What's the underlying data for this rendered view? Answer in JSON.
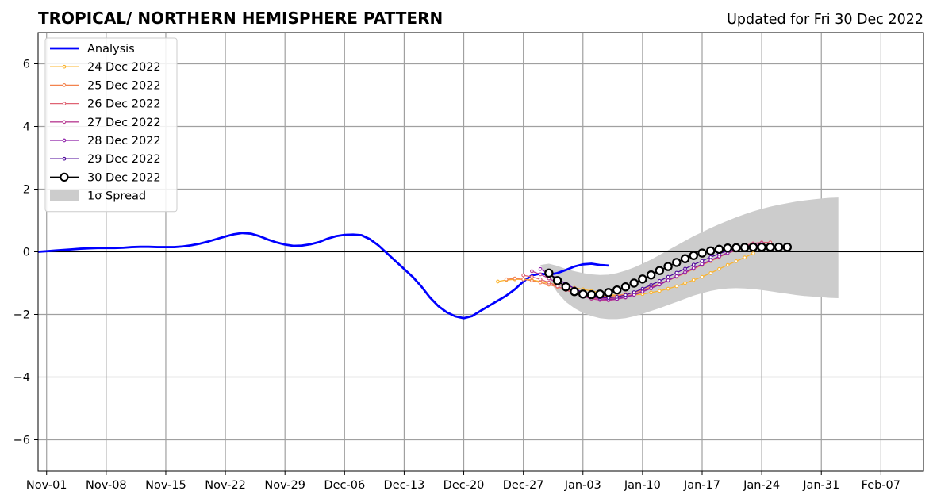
{
  "chart_data": {
    "type": "line",
    "title": "TROPICAL/ NORTHERN HEMISPHERE PATTERN",
    "subtitle": "Updated for Fri 30 Dec 2022",
    "xlabel": "",
    "ylabel": "",
    "x_start": "2022-10-31",
    "xlim": [
      "2022-10-31",
      "2023-02-12"
    ],
    "ylim": [
      -7,
      7
    ],
    "grid": true,
    "legend_position": "upper left",
    "x_ticks": [
      {
        "date": "2022-11-01",
        "label": "Nov-01"
      },
      {
        "date": "2022-11-08",
        "label": "Nov-08"
      },
      {
        "date": "2022-11-15",
        "label": "Nov-15"
      },
      {
        "date": "2022-11-22",
        "label": "Nov-22"
      },
      {
        "date": "2022-11-29",
        "label": "Nov-29"
      },
      {
        "date": "2022-12-06",
        "label": "Dec-06"
      },
      {
        "date": "2022-12-13",
        "label": "Dec-13"
      },
      {
        "date": "2022-12-20",
        "label": "Dec-20"
      },
      {
        "date": "2022-12-27",
        "label": "Dec-27"
      },
      {
        "date": "2023-01-03",
        "label": "Jan-03"
      },
      {
        "date": "2023-01-10",
        "label": "Jan-10"
      },
      {
        "date": "2023-01-17",
        "label": "Jan-17"
      },
      {
        "date": "2023-01-24",
        "label": "Jan-24"
      },
      {
        "date": "2023-01-31",
        "label": "Jan-31"
      },
      {
        "date": "2023-02-07",
        "label": "Feb-07"
      }
    ],
    "y_ticks": [
      {
        "value": 6,
        "label": "6"
      },
      {
        "value": 4,
        "label": "4"
      },
      {
        "value": 2,
        "label": "2"
      },
      {
        "value": 0,
        "label": "0"
      },
      {
        "value": -2,
        "label": "−2"
      },
      {
        "value": -4,
        "label": "−4"
      },
      {
        "value": -6,
        "label": "−6"
      }
    ],
    "analysis": {
      "name": "Analysis",
      "color": "#0000ff",
      "start": "2022-10-31",
      "values": [
        0.0,
        0.02,
        0.04,
        0.06,
        0.08,
        0.1,
        0.11,
        0.12,
        0.12,
        0.12,
        0.13,
        0.15,
        0.16,
        0.16,
        0.15,
        0.15,
        0.15,
        0.17,
        0.21,
        0.26,
        0.33,
        0.41,
        0.49,
        0.56,
        0.6,
        0.58,
        0.5,
        0.39,
        0.3,
        0.23,
        0.19,
        0.2,
        0.24,
        0.31,
        0.42,
        0.5,
        0.54,
        0.55,
        0.53,
        0.4,
        0.2,
        -0.05,
        -0.3,
        -0.55,
        -0.8,
        -1.1,
        -1.45,
        -1.73,
        -1.93,
        -2.06,
        -2.12,
        -2.05,
        -1.88,
        -1.72,
        -1.56,
        -1.4,
        -1.2,
        -0.95,
        -0.75,
        -0.7,
        -0.73,
        -0.68,
        -0.58,
        -0.47,
        -0.4,
        -0.38,
        -0.42,
        -0.44
      ]
    },
    "forecasts": [
      {
        "name": "24 Dec 2022",
        "color": "#fbb42e",
        "start": "2022-12-24",
        "values": [
          -0.95,
          -0.9,
          -0.88,
          -0.88,
          -0.9,
          -0.95,
          -1.0,
          -1.05,
          -1.1,
          -1.15,
          -1.2,
          -1.25,
          -1.3,
          -1.35,
          -1.4,
          -1.4,
          -1.38,
          -1.35,
          -1.3,
          -1.25,
          -1.18,
          -1.1,
          -1.0,
          -0.9,
          -0.8,
          -0.68,
          -0.55,
          -0.42,
          -0.3,
          -0.18,
          -0.05
        ]
      },
      {
        "name": "25 Dec 2022",
        "color": "#f3834e",
        "start": "2022-12-25",
        "values": [
          -0.88,
          -0.85,
          -0.88,
          -0.92,
          -0.98,
          -1.05,
          -1.12,
          -1.2,
          -1.28,
          -1.35,
          -1.4,
          -1.42,
          -1.42,
          -1.4,
          -1.35,
          -1.3,
          -1.22,
          -1.12,
          -1.02,
          -0.92,
          -0.8,
          -0.68,
          -0.55,
          -0.42,
          -0.3,
          -0.17,
          -0.05,
          0.05,
          0.12
        ]
      },
      {
        "name": "26 Dec 2022",
        "color": "#df6373",
        "start": "2022-12-27",
        "values": [
          -0.75,
          -0.8,
          -0.88,
          -0.98,
          -1.1,
          -1.22,
          -1.33,
          -1.42,
          -1.48,
          -1.5,
          -1.5,
          -1.48,
          -1.42,
          -1.35,
          -1.25,
          -1.15,
          -1.03,
          -0.9,
          -0.78,
          -0.65,
          -0.52,
          -0.4,
          -0.28,
          -0.15,
          -0.03,
          0.1,
          0.2,
          0.27,
          0.3,
          0.3
        ]
      },
      {
        "name": "27 Dec 2022",
        "color": "#b94195",
        "start": "2022-12-28",
        "values": [
          -0.62,
          -0.72,
          -0.85,
          -1.0,
          -1.15,
          -1.3,
          -1.42,
          -1.5,
          -1.54,
          -1.55,
          -1.52,
          -1.46,
          -1.38,
          -1.28,
          -1.17,
          -1.05,
          -0.92,
          -0.79,
          -0.66,
          -0.53,
          -0.4,
          -0.28,
          -0.15,
          -0.03,
          0.08,
          0.18,
          0.25,
          0.28
        ]
      },
      {
        "name": "28 Dec 2022",
        "color": "#8e1fa8",
        "start": "2022-12-29",
        "values": [
          -0.55,
          -0.7,
          -0.86,
          -1.02,
          -1.18,
          -1.32,
          -1.43,
          -1.5,
          -1.52,
          -1.5,
          -1.45,
          -1.37,
          -1.27,
          -1.16,
          -1.04,
          -0.91,
          -0.78,
          -0.65,
          -0.52,
          -0.39,
          -0.27,
          -0.15,
          -0.04,
          0.06,
          0.14,
          0.2,
          0.22
        ]
      },
      {
        "name": "29 Dec 2022",
        "color": "#4f0a9b",
        "start": "2022-12-30",
        "values": [
          -0.7,
          -0.86,
          -1.02,
          -1.17,
          -1.3,
          -1.4,
          -1.46,
          -1.47,
          -1.44,
          -1.38,
          -1.29,
          -1.18,
          -1.06,
          -0.93,
          -0.8,
          -0.67,
          -0.54,
          -0.41,
          -0.29,
          -0.17,
          -0.06,
          0.03,
          0.1,
          0.15,
          0.17,
          0.17
        ]
      },
      {
        "name": "30 Dec 2022",
        "color": "#000000",
        "start": "2022-12-30",
        "values": [
          -0.68,
          -0.92,
          -1.12,
          -1.27,
          -1.35,
          -1.37,
          -1.35,
          -1.3,
          -1.22,
          -1.12,
          -1.0,
          -0.87,
          -0.74,
          -0.6,
          -0.47,
          -0.34,
          -0.22,
          -0.12,
          -0.04,
          0.03,
          0.08,
          0.12,
          0.13,
          0.14,
          0.15,
          0.15,
          0.15,
          0.15,
          0.15
        ]
      }
    ],
    "spread": {
      "name": "1σ Spread",
      "color": "#cccccc",
      "start": "2022-12-29",
      "upper": [
        -0.42,
        -0.38,
        -0.45,
        -0.55,
        -0.62,
        -0.68,
        -0.72,
        -0.74,
        -0.73,
        -0.68,
        -0.6,
        -0.5,
        -0.38,
        -0.25,
        -0.1,
        0.05,
        0.2,
        0.35,
        0.5,
        0.63,
        0.76,
        0.88,
        0.99,
        1.1,
        1.2,
        1.29,
        1.37,
        1.44,
        1.5,
        1.55,
        1.6,
        1.64,
        1.67,
        1.7,
        1.72,
        1.73
      ],
      "lower": [
        -0.42,
        -0.9,
        -1.3,
        -1.6,
        -1.8,
        -1.95,
        -2.05,
        -2.12,
        -2.15,
        -2.15,
        -2.12,
        -2.06,
        -1.98,
        -1.89,
        -1.8,
        -1.7,
        -1.6,
        -1.5,
        -1.4,
        -1.32,
        -1.25,
        -1.2,
        -1.17,
        -1.16,
        -1.17,
        -1.19,
        -1.22,
        -1.26,
        -1.3,
        -1.34,
        -1.38,
        -1.41,
        -1.43,
        -1.45,
        -1.47,
        -1.48
      ]
    }
  }
}
